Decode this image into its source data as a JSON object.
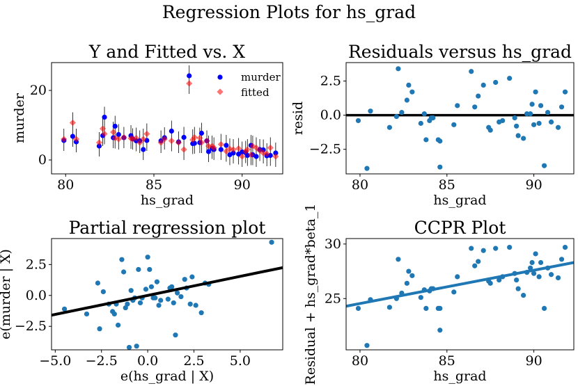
{
  "figure": {
    "suptitle": "Regression Plots for hs_grad"
  },
  "chart_data": [
    {
      "type": "scatter",
      "title": "Y and Fitted vs. X",
      "xlabel": "hs_grad",
      "ylabel": "murder",
      "xlim": [
        79.2,
        92.3
      ],
      "ylim": [
        -4.0,
        28.0
      ],
      "xticks": [
        80,
        85,
        90
      ],
      "yticks": [
        0,
        20
      ],
      "legend": {
        "placement": "top-right",
        "entries": [
          "murder",
          "fitted"
        ]
      },
      "colors": {
        "murder": "#0000ff",
        "fitted": "#ff0000",
        "errorbar": "#000000"
      },
      "series": [
        {
          "name": "murder",
          "marker": "circle",
          "color": "#0000ff",
          "x": [
            79.9,
            80.4,
            80.6,
            81.9,
            82.1,
            82.2,
            82.7,
            82.8,
            83.0,
            83.3,
            83.7,
            83.8,
            84.0,
            84.2,
            84.4,
            84.6,
            85.4,
            85.6,
            86.0,
            86.4,
            86.7,
            87.0,
            87.2,
            87.3,
            87.6,
            87.7,
            88.0,
            88.1,
            88.3,
            88.4,
            88.8,
            89.1,
            89.3,
            89.5,
            89.8,
            90.0,
            90.2,
            90.3,
            90.5,
            90.6,
            90.8,
            91.0,
            91.2,
            91.4,
            91.6,
            91.9
          ],
          "y": [
            5.6,
            6.8,
            5.2,
            4.0,
            7.0,
            12.3,
            6.4,
            9.7,
            7.3,
            6.4,
            7.0,
            6.1,
            5.5,
            5.5,
            3.0,
            5.6,
            5.5,
            6.4,
            8.3,
            5.2,
            6.5,
            24.2,
            4.7,
            4.8,
            5.0,
            7.7,
            5.5,
            2.4,
            3.3,
            3.0,
            3.0,
            4.2,
            1.5,
            2.0,
            1.7,
            2.3,
            2.1,
            1.3,
            4.2,
            1.5,
            1.0,
            3.0,
            2.9,
            1.2,
            1.3,
            2.0
          ]
        },
        {
          "name": "fitted",
          "marker": "diamond",
          "color": "#ff0000",
          "x": [
            79.9,
            80.4,
            80.6,
            81.9,
            82.1,
            82.2,
            82.7,
            82.8,
            83.0,
            83.3,
            83.7,
            83.8,
            84.0,
            84.2,
            84.4,
            84.6,
            85.4,
            85.6,
            86.0,
            86.4,
            86.7,
            87.0,
            87.2,
            87.3,
            87.6,
            87.7,
            88.0,
            88.1,
            88.3,
            88.4,
            88.8,
            89.1,
            89.3,
            89.5,
            89.8,
            90.0,
            90.2,
            90.3,
            90.5,
            90.6,
            90.8,
            91.0,
            91.2,
            91.4,
            91.6,
            91.9
          ],
          "y": [
            6.0,
            10.7,
            6.0,
            5.0,
            9.0,
            7.5,
            8.0,
            6.3,
            6.0,
            6.5,
            6.2,
            6.0,
            6.3,
            5.0,
            6.0,
            7.5,
            5.0,
            6.0,
            5.5,
            5.0,
            3.0,
            22.0,
            5.8,
            6.5,
            6.3,
            5.0,
            5.5,
            4.0,
            4.0,
            3.5,
            4.5,
            2.5,
            3.2,
            3.0,
            3.3,
            1.0,
            2.5,
            3.0,
            1.5,
            4.0,
            3.5,
            2.7,
            2.0,
            1.8,
            3.5,
            1.0
          ]
        }
      ]
    },
    {
      "type": "scatter",
      "title": "Residuals versus hs_grad",
      "xlabel": "hs_grad",
      "ylabel": "resid",
      "xlim": [
        79.2,
        92.3
      ],
      "ylim": [
        -4.3,
        3.85
      ],
      "xticks": [
        80,
        85,
        90
      ],
      "yticks": [
        -2.5,
        0.0,
        2.5
      ],
      "yticklabels": [
        "−2.5",
        "0.0",
        "2.5"
      ],
      "refline": {
        "y": 0
      },
      "colors": {
        "points": "#1f77b4",
        "refline": "#000000"
      },
      "x": [
        79.9,
        80.4,
        80.6,
        81.7,
        82.1,
        82.2,
        82.4,
        82.7,
        82.8,
        83.0,
        83.5,
        83.7,
        83.8,
        84.0,
        84.1,
        84.2,
        84.5,
        84.6,
        84.6,
        85.4,
        85.6,
        86.4,
        86.6,
        86.8,
        87.1,
        87.4,
        87.5,
        87.8,
        88.0,
        88.2,
        88.6,
        88.9,
        89.0,
        89.1,
        89.4,
        89.6,
        89.8,
        89.9,
        90.0,
        90.1,
        90.3,
        90.4,
        90.6,
        90.8,
        91.0,
        91.4,
        91.6,
        91.8
      ],
      "y": [
        -0.4,
        -3.9,
        0.3,
        -0.9,
        -0.1,
        3.4,
        0.2,
        1.1,
        2.2,
        1.7,
        -0.6,
        0.1,
        -1.8,
        -0.4,
        -0.2,
        -0.2,
        -1.8,
        -1.9,
        -3.8,
        -0.7,
        0.7,
        3.2,
        0.6,
        1.4,
        2.2,
        -0.9,
        -1.1,
        2.4,
        -0.5,
        -0.4,
        2.7,
        -0.2,
        -0.8,
        -1.5,
        -1.7,
        0.1,
        0.1,
        0.8,
        -0.7,
        1.7,
        -0.6,
        0.7,
        -3.7,
        0.2,
        -0.5,
        -0.9,
        0.6,
        1.7
      ]
    },
    {
      "type": "scatter",
      "title": "Partial regression plot",
      "xlabel": "e(hs_grad | X)",
      "ylabel": "e(murder | X)",
      "xlim": [
        -5.2,
        7.3
      ],
      "ylim": [
        -4.4,
        4.6
      ],
      "xticks": [
        -5.0,
        -2.5,
        0.0,
        2.5,
        5.0
      ],
      "xticklabels": [
        "−5.0",
        "−2.5",
        "0.0",
        "2.5",
        "5.0"
      ],
      "yticks": [
        -2.5,
        0.0,
        2.5
      ],
      "yticklabels": [
        "−2.5",
        "0.0",
        "2.5"
      ],
      "fit_line": {
        "x": [
          -5.2,
          7.3
        ],
        "y": [
          -1.6,
          2.25
        ]
      },
      "colors": {
        "points": "#1f77b4",
        "line": "#000000"
      },
      "x": [
        -4.5,
        -3.3,
        -2.7,
        -2.6,
        -2.4,
        -2.1,
        -1.9,
        -1.8,
        -1.7,
        -1.6,
        -1.4,
        -1.3,
        -1.2,
        -1.1,
        -1.0,
        -0.9,
        -0.8,
        -0.7,
        -0.6,
        -0.5,
        -0.4,
        -0.3,
        -0.1,
        0.0,
        0.1,
        0.2,
        0.3,
        0.4,
        0.5,
        0.6,
        0.7,
        1.1,
        1.2,
        1.3,
        1.4,
        1.5,
        1.6,
        1.8,
        2.0,
        2.1,
        2.3,
        2.4,
        2.6,
        2.9,
        3.1,
        3.3,
        6.7
      ],
      "y": [
        -1.1,
        -1.5,
        1.0,
        -2.7,
        0.3,
        -0.7,
        -1.3,
        -1.5,
        -0.7,
        -2.4,
        2.9,
        1.9,
        -1.0,
        -0.7,
        -4.2,
        0.4,
        -0.4,
        -0.2,
        -4.1,
        2.1,
        -0.6,
        -0.2,
        0.5,
        3.1,
        2.1,
        0.7,
        -0.2,
        -0.2,
        1.1,
        -0.8,
        -0.4,
        -0.3,
        0.6,
        0.7,
        -0.6,
        -3.2,
        0.2,
        -0.1,
        1.3,
        0.6,
        -0.7,
        1.5,
        -0.8,
        -1.4,
        1.0,
        0.9,
        4.3
      ]
    },
    {
      "type": "scatter",
      "title": "CCPR Plot",
      "xlabel": "hs_grad",
      "ylabel": "Residual + hs_grad*beta_1",
      "xlim": [
        79.2,
        92.3
      ],
      "ylim": [
        20.3,
        30.5
      ],
      "xticks": [
        80,
        85,
        90
      ],
      "yticks": [
        25,
        30
      ],
      "fit_line": {
        "x": [
          79.2,
          92.3
        ],
        "y": [
          24.3,
          28.3
        ]
      },
      "colors": {
        "points": "#1f77b4",
        "line": "#1f77b4"
      },
      "x": [
        79.9,
        80.4,
        80.6,
        81.7,
        82.1,
        82.2,
        82.4,
        82.7,
        82.8,
        83.0,
        83.5,
        83.7,
        83.8,
        84.0,
        84.1,
        84.2,
        84.5,
        84.6,
        84.6,
        85.4,
        85.6,
        86.4,
        86.6,
        86.8,
        87.1,
        87.4,
        87.5,
        87.8,
        88.0,
        88.2,
        88.6,
        88.9,
        89.0,
        89.1,
        89.4,
        89.6,
        89.8,
        89.9,
        90.0,
        90.1,
        90.3,
        90.4,
        90.6,
        90.8,
        91.0,
        91.4,
        91.6,
        91.8
      ],
      "y": [
        24.1,
        20.7,
        24.9,
        24.2,
        25.0,
        28.6,
        25.5,
        26.4,
        27.5,
        27.1,
        25.1,
        25.8,
        24.1,
        25.7,
        25.9,
        25.9,
        24.1,
        24.1,
        22.1,
        25.6,
        27.0,
        29.6,
        28.0,
        28.4,
        29.4,
        26.6,
        26.4,
        29.6,
        26.7,
        27.0,
        29.7,
        27.3,
        26.7,
        25.9,
        25.3,
        27.4,
        27.8,
        28.3,
        27.3,
        29.1,
        27.0,
        28.3,
        24.1,
        27.8,
        27.2,
        26.9,
        28.6,
        29.7
      ]
    }
  ]
}
